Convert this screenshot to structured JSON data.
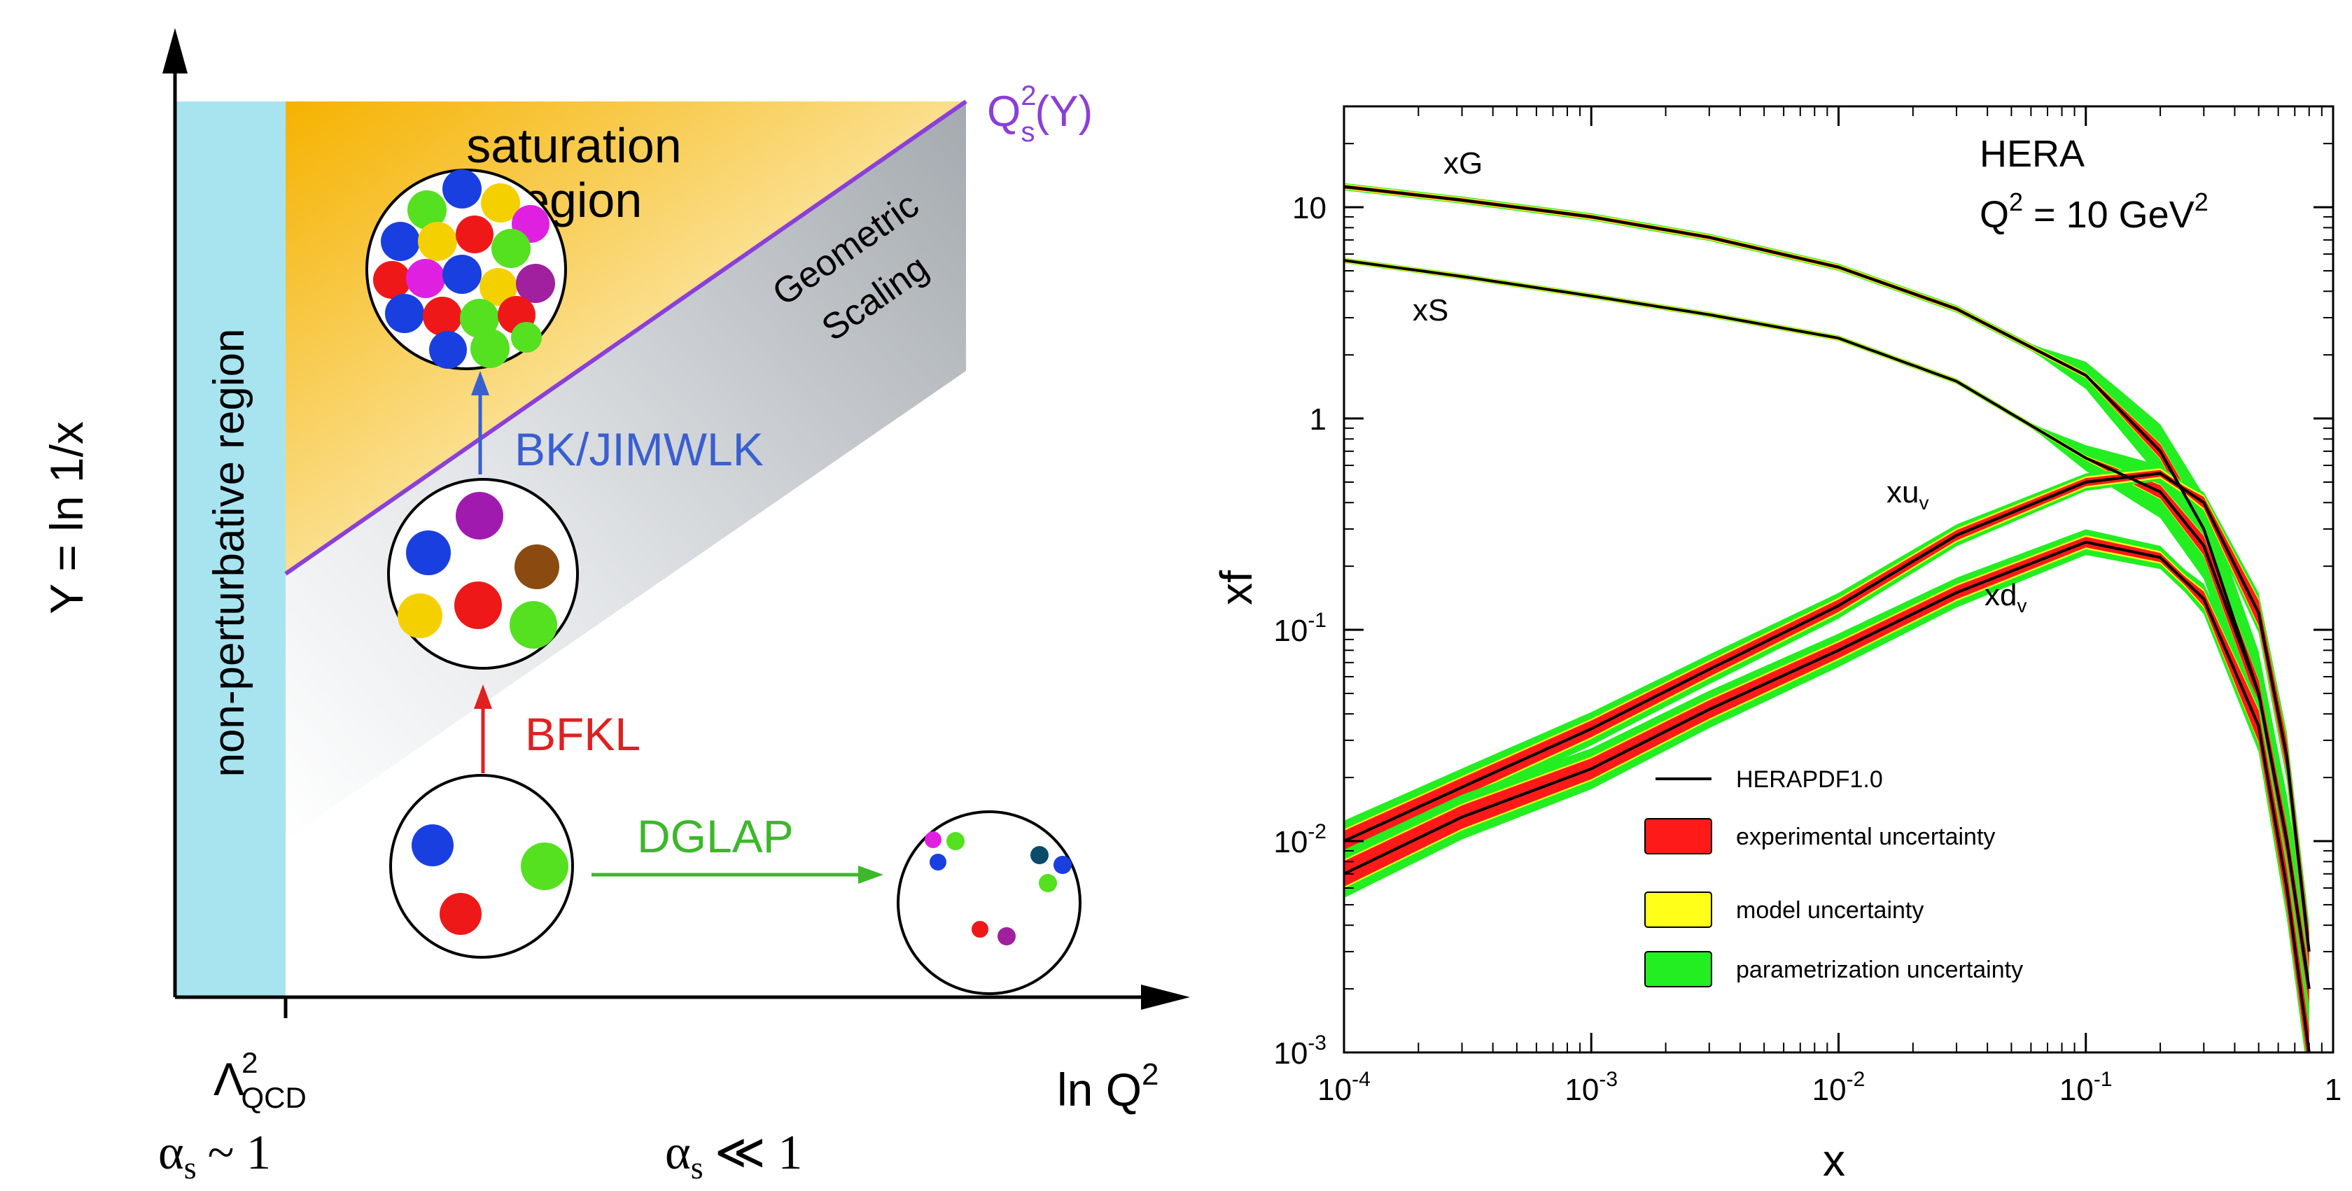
{
  "diagram": {
    "y_axis_label": "Y = ln 1/x",
    "x_axis_label": "ln Q",
    "x_axis_label_sup": "2",
    "lambda_label": "Λ",
    "lambda_sup": "2",
    "lambda_sub": "QCD",
    "alpha_strong": "α",
    "alpha_strong_sub": "s",
    "alpha_strong_rel": "~ 1",
    "alpha_weak": "α",
    "alpha_weak_sub": "s",
    "alpha_weak_rel": "≪ 1",
    "nonperturbative_label": "non-perturbative region",
    "saturation_line1": "saturation",
    "saturation_line2": "region",
    "geometric_line1": "Geometric",
    "geometric_line2": "Scaling",
    "qs_label": "Q",
    "qs_sup": "2",
    "qs_sub": "s",
    "qs_arg": "(Y)",
    "bk_label": "BK/JIMWLK",
    "bfkl_label": "BFKL",
    "dglap_label": "DGLAP",
    "colors": {
      "nonpert": "#a8e4f0",
      "saturation": "#f6b800",
      "geometric": "#b0b4b8",
      "qs_line": "#8b3fd9",
      "bk": "#3a5fd0",
      "bfkl": "#e02020",
      "dglap": "#3cb82a"
    }
  },
  "chart_data": {
    "type": "line",
    "title": "HERA",
    "subtitle": "Q",
    "subtitle_sup": "2",
    "subtitle_rest": " = 10 GeV",
    "subtitle_sup2": "2",
    "xlabel": "x",
    "ylabel": "xf",
    "xscale": "log",
    "yscale": "log",
    "xlim": [
      0.0001,
      1
    ],
    "ylim": [
      0.001,
      30
    ],
    "x_ticks": [
      {
        "base": "10",
        "exp": "-4"
      },
      {
        "base": "10",
        "exp": "-3"
      },
      {
        "base": "10",
        "exp": "-2"
      },
      {
        "base": "10",
        "exp": "-1"
      },
      {
        "base": "1",
        "exp": ""
      }
    ],
    "y_ticks": [
      {
        "base": "10",
        "exp": "-3"
      },
      {
        "base": "10",
        "exp": "-2"
      },
      {
        "base": "10",
        "exp": "-1"
      },
      {
        "base": "1",
        "exp": ""
      },
      {
        "base": "10",
        "exp": ""
      }
    ],
    "series_labels": {
      "xG": "xG",
      "xS": "xS",
      "xuv_main": "xu",
      "xuv_sub": "v",
      "xdv_main": "xd",
      "xdv_sub": "v"
    },
    "x": [
      0.0001,
      0.0003,
      0.001,
      0.003,
      0.01,
      0.03,
      0.1,
      0.2,
      0.3,
      0.5,
      0.65,
      0.8
    ],
    "series": [
      {
        "key": "xG",
        "values": [
          12.5,
          10.8,
          9.0,
          7.2,
          5.2,
          3.3,
          1.6,
          0.7,
          0.3,
          0.05,
          0.01,
          0.002
        ]
      },
      {
        "key": "xS",
        "values": [
          5.6,
          4.7,
          3.8,
          3.1,
          2.4,
          1.5,
          0.65,
          0.45,
          0.25,
          0.05,
          0.01,
          0.002
        ]
      },
      {
        "key": "xuv",
        "values": [
          0.01,
          0.018,
          0.034,
          0.065,
          0.13,
          0.28,
          0.5,
          0.55,
          0.4,
          0.12,
          0.025,
          0.003
        ]
      },
      {
        "key": "xdv",
        "values": [
          0.007,
          0.013,
          0.022,
          0.042,
          0.08,
          0.15,
          0.26,
          0.22,
          0.14,
          0.035,
          0.006,
          0.001
        ]
      }
    ],
    "legend": [
      {
        "label": "HERAPDF1.0",
        "kind": "line",
        "color": "#000000"
      },
      {
        "label": "experimental uncertainty",
        "kind": "box",
        "color": "#ff1a1a"
      },
      {
        "label": "model uncertainty",
        "kind": "box",
        "color": "#ffff1a"
      },
      {
        "label": "parametrization uncertainty",
        "kind": "box",
        "color": "#22ee22"
      }
    ],
    "legend_position": "bottom-center",
    "grid": false
  }
}
